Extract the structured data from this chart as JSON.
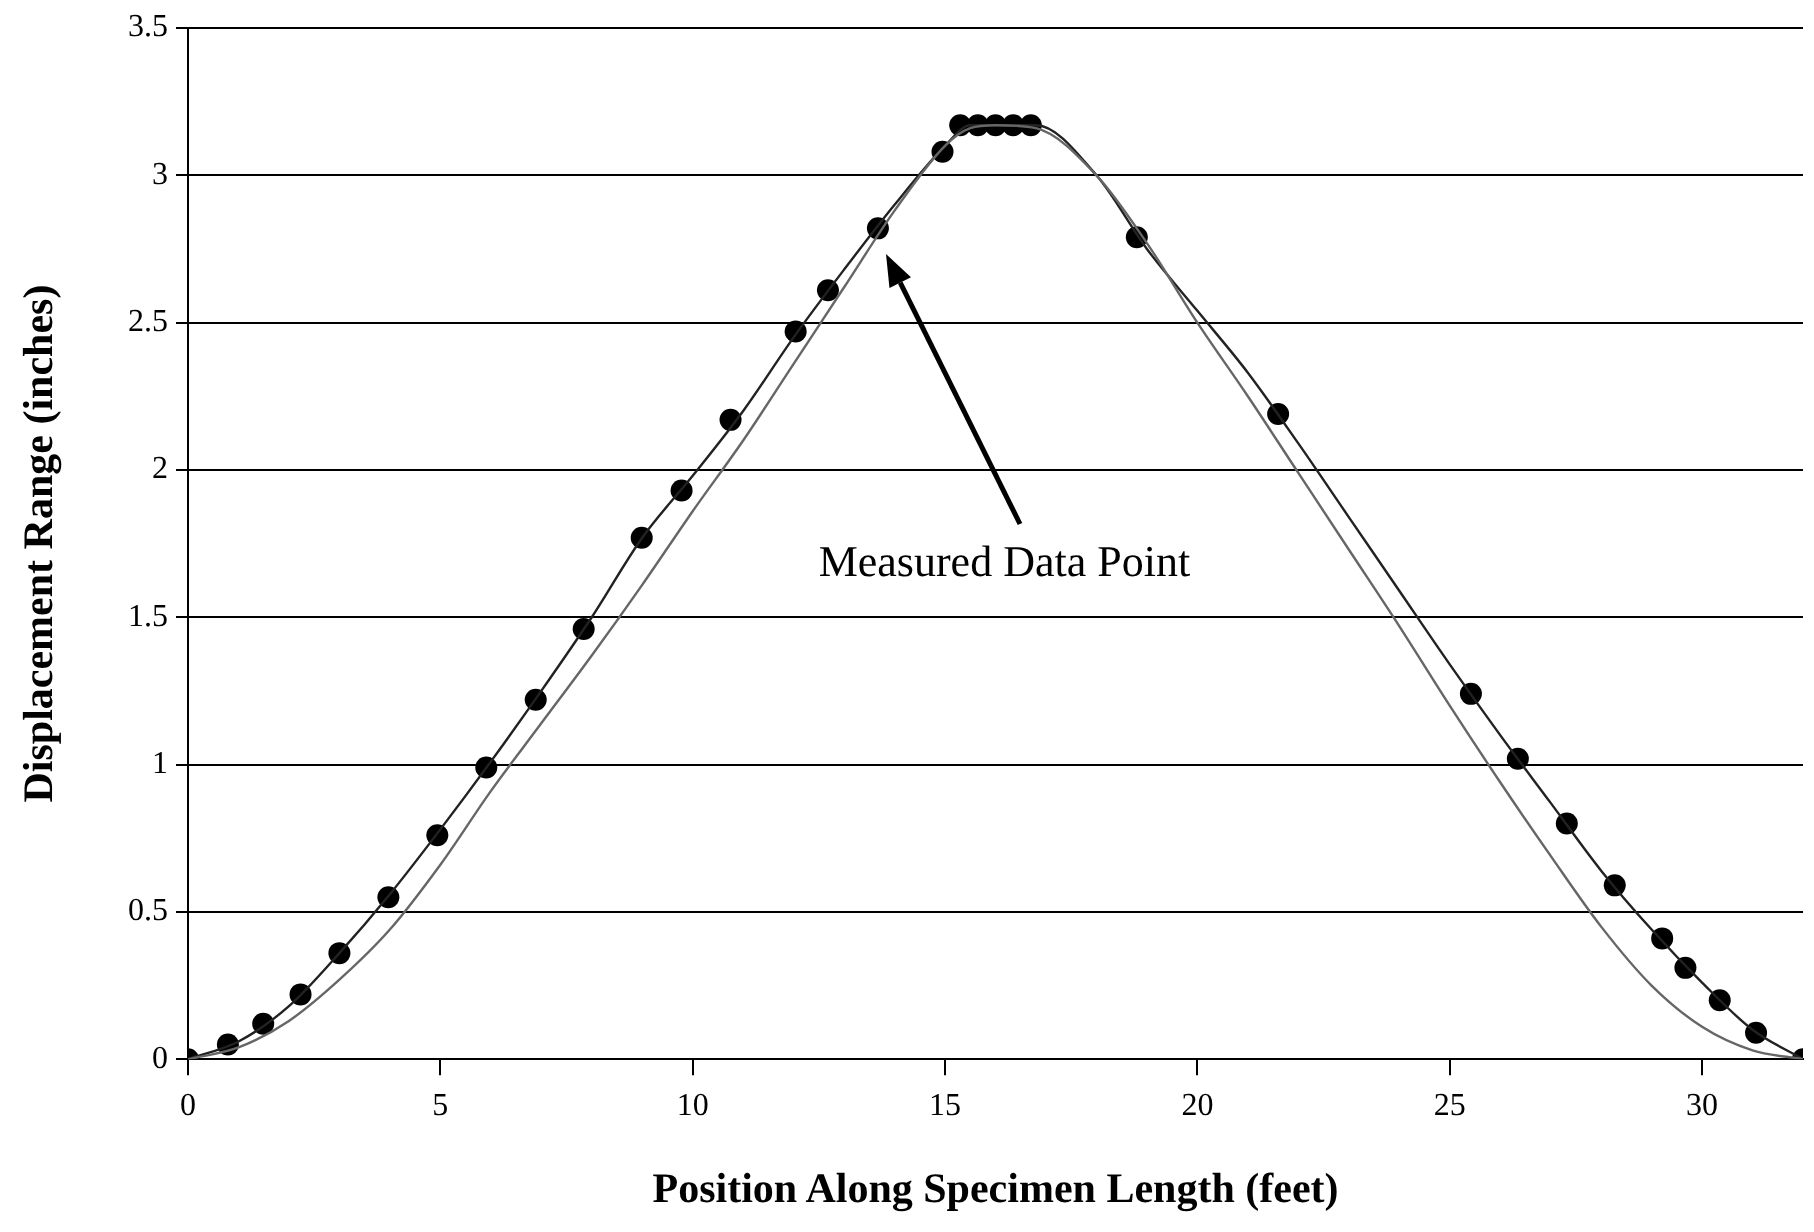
{
  "chart_data": {
    "type": "line",
    "xlabel": "Position Along Specimen Length (feet)",
    "ylabel": "Displacement Range (inches)",
    "xlim": [
      0,
      32
    ],
    "xticks": [
      0,
      5,
      10,
      15,
      20,
      25,
      30
    ],
    "ylim": [
      0,
      3.5
    ],
    "yticks": [
      0,
      0.5,
      1,
      1.5,
      2,
      2.5,
      3,
      3.5
    ],
    "grid": "y",
    "series": [
      {
        "type": "line",
        "color": "#666666",
        "marker": "none",
        "x": [
          0,
          1,
          2,
          3,
          4,
          5,
          6,
          7,
          8,
          9,
          10,
          11,
          12,
          13,
          14,
          15,
          15.5,
          16,
          16.8,
          18,
          19,
          20,
          21,
          22,
          23,
          24,
          25,
          26,
          27,
          28,
          29,
          30,
          31,
          32
        ],
        "values": [
          0,
          0.04,
          0.13,
          0.27,
          0.44,
          0.66,
          0.91,
          1.14,
          1.37,
          1.61,
          1.86,
          2.1,
          2.36,
          2.62,
          2.88,
          3.1,
          3.16,
          3.17,
          3.16,
          3.0,
          2.77,
          2.5,
          2.25,
          1.99,
          1.73,
          1.47,
          1.2,
          0.94,
          0.69,
          0.45,
          0.25,
          0.11,
          0.03,
          0
        ]
      },
      {
        "type": "line",
        "color": "#222222",
        "marker": "none",
        "x": [
          0,
          1,
          2,
          3,
          4,
          5,
          6,
          7,
          8,
          9,
          10,
          11,
          12,
          13,
          14,
          15,
          15.5,
          16.8,
          18,
          19,
          20,
          21,
          22,
          23,
          24,
          25,
          26,
          27,
          28,
          29,
          30,
          31,
          32
        ],
        "values": [
          0,
          0.06,
          0.18,
          0.36,
          0.56,
          0.78,
          1.01,
          1.25,
          1.5,
          1.77,
          1.98,
          2.2,
          2.45,
          2.68,
          2.9,
          3.1,
          3.17,
          3.17,
          3.0,
          2.75,
          2.54,
          2.33,
          2.09,
          1.84,
          1.59,
          1.34,
          1.1,
          0.87,
          0.64,
          0.44,
          0.26,
          0.1,
          0
        ]
      },
      {
        "type": "scatter",
        "color": "#000000",
        "marker": "circle",
        "x": [
          0,
          0.79,
          1.49,
          2.23,
          3.0,
          3.97,
          4.94,
          5.91,
          6.89,
          7.84,
          8.99,
          9.78,
          10.75,
          12.04,
          12.68,
          13.67,
          14.95,
          15.3,
          15.65,
          16.0,
          16.35,
          16.7,
          18.8,
          21.6,
          25.42,
          26.35,
          27.32,
          28.27,
          29.21,
          29.67,
          30.35,
          31.07,
          32
        ],
        "values": [
          0,
          0.05,
          0.12,
          0.22,
          0.36,
          0.55,
          0.76,
          0.99,
          1.22,
          1.46,
          1.77,
          1.93,
          2.17,
          2.47,
          2.61,
          2.82,
          3.08,
          3.17,
          3.17,
          3.17,
          3.17,
          3.17,
          2.79,
          2.19,
          1.24,
          1.02,
          0.8,
          0.59,
          0.41,
          0.31,
          0.2,
          0.09,
          0
        ]
      }
    ],
    "annotations": [
      "Measured Data Point"
    ]
  }
}
